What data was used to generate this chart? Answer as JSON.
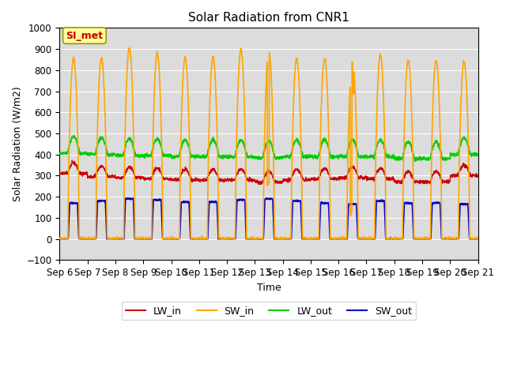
{
  "title": "Solar Radiation from CNR1",
  "xlabel": "Time",
  "ylabel": "Solar Radiation (W/m2)",
  "ylim": [
    -100,
    1000
  ],
  "colors": {
    "LW_in": "#cc0000",
    "SW_in": "#ffa500",
    "LW_out": "#00cc00",
    "SW_out": "#0000cc"
  },
  "bg_color": "#dcdcdc",
  "annotation_text": "SI_met",
  "annotation_color": "#cc0000",
  "annotation_bg": "#ffff99",
  "grid_color": "white",
  "xtick_labels": [
    "Sep 6",
    "Sep 7",
    "Sep 8",
    "Sep 9",
    "Sep 10",
    "Sep 11",
    "Sep 12",
    "Sep 13",
    "Sep 14",
    "Sep 15",
    "Sep 16",
    "Sep 17",
    "Sep 18",
    "Sep 19",
    "Sep 20",
    "Sep 21"
  ],
  "n_days": 15,
  "pts_per_day": 144,
  "sw_peaks": [
    855,
    855,
    905,
    880,
    860,
    860,
    895,
    895,
    855,
    855,
    840,
    875,
    845,
    845,
    840
  ],
  "lw_in_bases": [
    325,
    310,
    305,
    300,
    295,
    295,
    295,
    285,
    295,
    300,
    305,
    300,
    285,
    285,
    315
  ],
  "lw_out_bases": [
    405,
    400,
    395,
    395,
    390,
    390,
    390,
    385,
    390,
    390,
    390,
    390,
    380,
    380,
    400
  ],
  "sw_out_peaks": [
    170,
    180,
    190,
    185,
    175,
    175,
    185,
    190,
    180,
    170,
    165,
    180,
    170,
    170,
    165
  ]
}
